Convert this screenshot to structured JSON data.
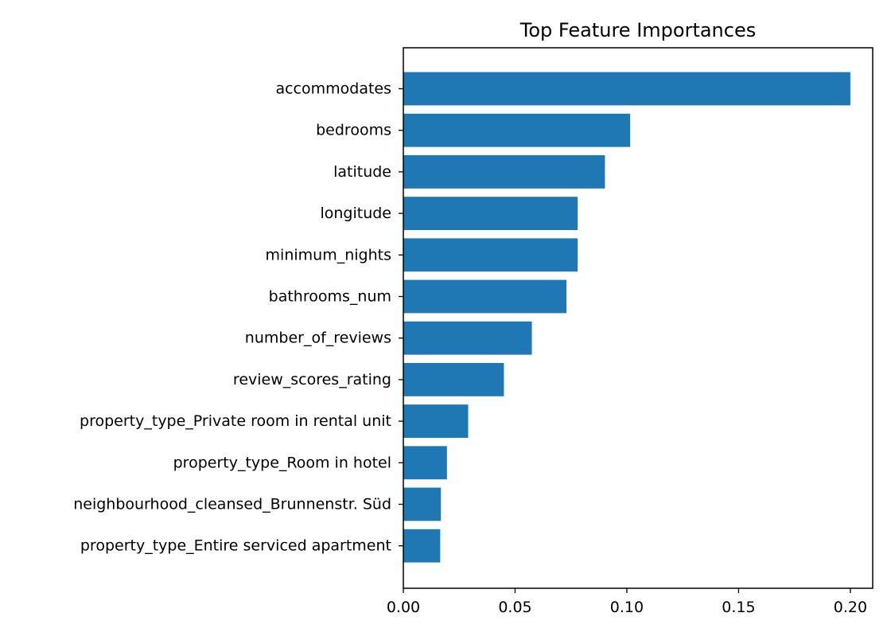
{
  "chart_data": {
    "type": "bar",
    "orientation": "horizontal",
    "title": "Top Feature Importances",
    "xlabel": "",
    "ylabel": "",
    "categories": [
      "accommodates",
      "bedrooms",
      "latitude",
      "longitude",
      "minimum_nights",
      "bathrooms_num",
      "number_of_reviews",
      "review_scores_rating",
      "property_type_Private room in rental unit",
      "property_type_Room in hotel",
      "neighbourhood_cleansed_Brunnenstr. Süd",
      "property_type_Entire serviced apartment"
    ],
    "values": [
      0.2,
      0.1015,
      0.0902,
      0.078,
      0.078,
      0.073,
      0.0575,
      0.045,
      0.029,
      0.0195,
      0.0168,
      0.0165
    ],
    "xlim": [
      0,
      0.21
    ],
    "xticks": [
      0.0,
      0.05,
      0.1,
      0.15,
      0.2
    ],
    "xtick_labels": [
      "0.00",
      "0.05",
      "0.10",
      "0.15",
      "0.20"
    ],
    "grid": false,
    "legend": "none",
    "bar_color": "#1f77b4"
  }
}
